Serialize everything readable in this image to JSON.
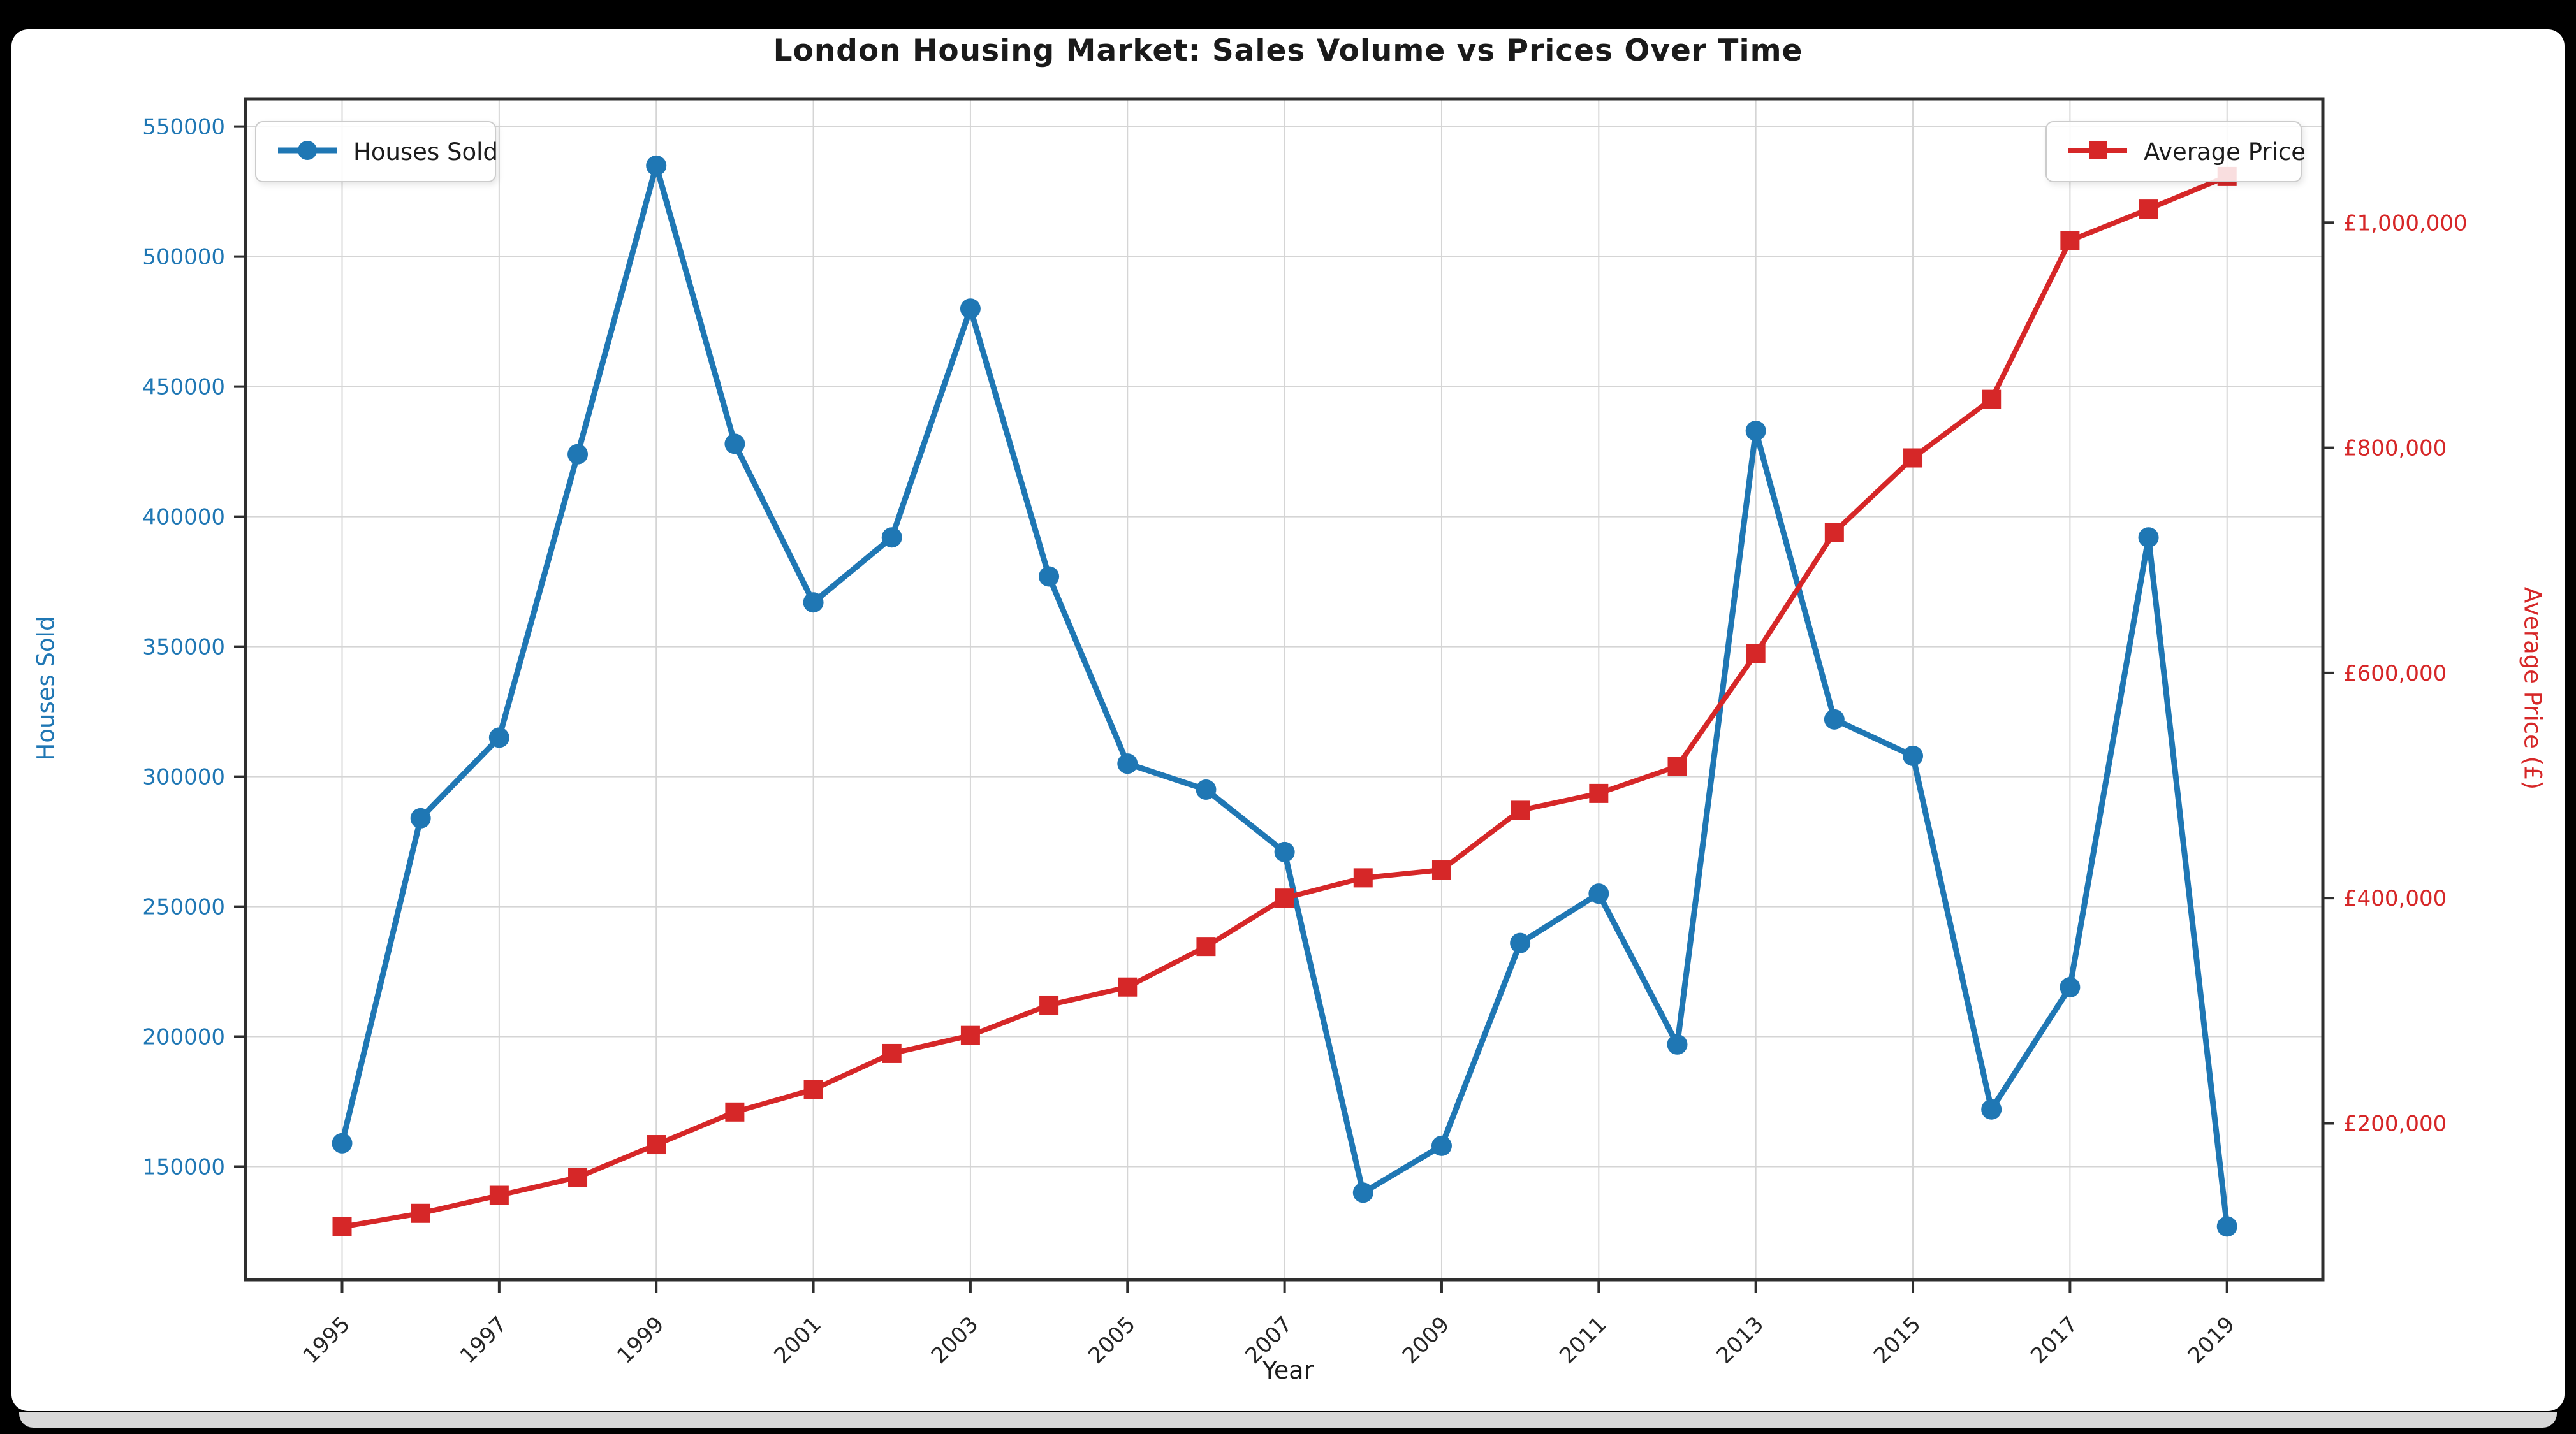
{
  "window": {
    "background": "#000000",
    "figure_background": "#ffffff",
    "bottom_bar_color": "#d8d8d8"
  },
  "styles": {
    "grid_color": "#d5d5d5",
    "spine_color": "#2e2e2e",
    "tick_color": "#2e2e2e",
    "x_tick_text_color": "#262626",
    "title_color": "#1a1a1a"
  },
  "chart_data": {
    "type": "line",
    "title": "London Housing Market: Sales Volume vs Prices Over Time",
    "xlabel": "Year",
    "grid": true,
    "x": [
      1995,
      1996,
      1997,
      1998,
      1999,
      2000,
      2001,
      2002,
      2003,
      2004,
      2005,
      2006,
      2007,
      2008,
      2009,
      2010,
      2011,
      2012,
      2013,
      2014,
      2015,
      2016,
      2017,
      2018,
      2019
    ],
    "x_tick_years": [
      1995,
      1997,
      1999,
      2001,
      2003,
      2005,
      2007,
      2009,
      2011,
      2013,
      2015,
      2017,
      2019
    ],
    "x_range": [
      1993.77,
      2020.22
    ],
    "left_axis": {
      "label": "Houses Sold",
      "color": "#1f77b4",
      "ticks": [
        150000,
        200000,
        250000,
        300000,
        350000,
        400000,
        450000,
        500000,
        550000
      ],
      "range": [
        106500,
        560700
      ]
    },
    "right_axis": {
      "label": "Average Price (£)",
      "color": "#d62728",
      "ticks": [
        200000,
        400000,
        600000,
        800000,
        1000000
      ],
      "tick_labels": [
        "£200,000",
        "£400,000",
        "£600,000",
        "£800,000",
        "£1,000,000"
      ],
      "range": [
        61000,
        1110000
      ]
    },
    "legend_position": {
      "houses_sold": "upper left",
      "average_price": "upper right"
    },
    "series": [
      {
        "name": "Houses Sold",
        "axis": "left",
        "color": "#1f77b4",
        "marker": "circle",
        "line_width": 9,
        "values": [
          159000,
          284000,
          315000,
          424000,
          535000,
          428000,
          367000,
          392000,
          480000,
          377000,
          305000,
          295000,
          271000,
          140000,
          158000,
          236000,
          255000,
          197000,
          433000,
          322000,
          308000,
          172000,
          219000,
          392000,
          127000
        ]
      },
      {
        "name": "Average Price",
        "axis": "right",
        "color": "#d62728",
        "marker": "square",
        "line_width": 8,
        "values": [
          108000,
          120000,
          136000,
          152000,
          181000,
          210000,
          230000,
          262000,
          278000,
          305000,
          321000,
          357000,
          400000,
          418000,
          425000,
          478000,
          493000,
          517000,
          617000,
          725000,
          791000,
          843000,
          984000,
          1012000,
          1041000
        ]
      }
    ]
  }
}
